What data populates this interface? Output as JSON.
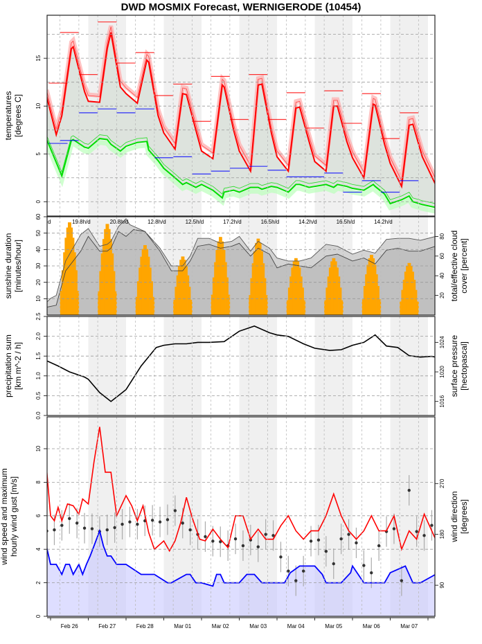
{
  "title": "DWD MOSMIX Forecast, WERNIGERODE (10454)",
  "chart_data": [
    {
      "type": "line",
      "panel": "temperatures",
      "ylabel": "temperatures [degrees C]",
      "ylim": [
        -1.5,
        19.5
      ],
      "yticks": [
        0,
        5,
        10,
        15
      ],
      "grid": true,
      "x_days": [
        "Feb 26",
        "Feb 27",
        "Feb 28",
        "Mar 01",
        "Mar 02",
        "Mar 03",
        "Mar 04",
        "Mar 05",
        "Mar 06",
        "Mar 07"
      ],
      "series": [
        {
          "name": "temperature",
          "color": "#ff0000",
          "x": [
            -0.1,
            0.15,
            0.3,
            0.55,
            0.6,
            0.9,
            1.0,
            1.3,
            1.5,
            1.6,
            1.85,
            2.0,
            2.3,
            2.55,
            2.6,
            2.85,
            3.0,
            3.3,
            3.5,
            3.6,
            3.85,
            4.0,
            4.3,
            4.55,
            4.6,
            4.85,
            5.0,
            5.3,
            5.5,
            5.6,
            5.85,
            6.0,
            6.3,
            6.5,
            6.6,
            6.85,
            7.0,
            7.3,
            7.5,
            7.6,
            7.85,
            8.0,
            8.3,
            8.55,
            8.6,
            8.85,
            9.0,
            9.3,
            9.5,
            9.6,
            9.85,
            10.2
          ],
          "values": [
            11,
            7.0,
            9,
            16.0,
            16.2,
            11.5,
            10.5,
            10.4,
            16,
            17.7,
            12,
            11.3,
            10.3,
            14.8,
            14.6,
            9,
            7.2,
            5.5,
            11.3,
            11.2,
            7.5,
            5.3,
            4.5,
            12.2,
            12.0,
            7.5,
            5.3,
            3.2,
            12.2,
            12.3,
            7.2,
            4.7,
            3.2,
            9.8,
            9.9,
            6.3,
            4.2,
            3.2,
            10.0,
            10.0,
            6.3,
            4.6,
            2.5,
            10.2,
            10.1,
            6.0,
            4.0,
            1.6,
            8.0,
            8.1,
            4.7,
            1.8
          ]
        },
        {
          "name": "dewpoint",
          "color": "#00dd00",
          "x": [
            -0.1,
            0.3,
            0.55,
            0.6,
            0.9,
            1.0,
            1.3,
            1.5,
            1.6,
            1.85,
            2.0,
            2.3,
            2.55,
            2.6,
            2.85,
            3.0,
            3.3,
            3.5,
            3.6,
            3.85,
            4.0,
            4.3,
            4.55,
            4.6,
            4.85,
            5.0,
            5.3,
            5.5,
            5.6,
            5.85,
            6.0,
            6.3,
            6.5,
            6.6,
            6.85,
            7.0,
            7.3,
            7.5,
            7.6,
            7.85,
            8.0,
            8.3,
            8.55,
            8.6,
            8.85,
            9.0,
            9.3,
            9.5,
            9.6,
            9.85,
            10.2
          ],
          "values": [
            6.5,
            2.7,
            6.4,
            6.5,
            5.7,
            5.6,
            6.6,
            6.5,
            6.0,
            5.3,
            5.8,
            6.2,
            6.3,
            5.4,
            4.3,
            3.5,
            2.5,
            1.8,
            2.0,
            1.5,
            1.8,
            1.2,
            0.4,
            1.0,
            1.2,
            1.0,
            1.5,
            1.5,
            1.3,
            1.6,
            1.5,
            1.0,
            1.8,
            1.8,
            1.5,
            1.6,
            1.8,
            1.5,
            1.8,
            1.6,
            1.4,
            1.2,
            1.8,
            1.6,
            0.8,
            -0.2,
            0.2,
            0.6,
            0.0,
            -0.3,
            -0.6
          ]
        },
        {
          "name": "daily_max",
          "color": "#ff0000",
          "type": "segments",
          "x0": [
            -0.05,
            0.25,
            0.75,
            1.25,
            1.75,
            2.25,
            2.75,
            3.25,
            3.75,
            4.25,
            4.75,
            5.25,
            5.75,
            6.25,
            6.75,
            7.25,
            7.75,
            8.25,
            8.75,
            9.25
          ],
          "values": [
            12.4,
            17.7,
            13.3,
            18.8,
            14.5,
            15.6,
            11.1,
            12.3,
            8.4,
            13.1,
            8.6,
            13.3,
            8.6,
            11.4,
            7.7,
            11.6,
            8.2,
            11.3,
            6.6,
            9.3
          ]
        },
        {
          "name": "daily_min",
          "color": "#0000ff",
          "type": "segments",
          "x0": [
            -0.05,
            0.25,
            0.75,
            1.25,
            1.75,
            2.25,
            2.75,
            3.25,
            3.75,
            4.25,
            4.75,
            5.25,
            5.75,
            6.25,
            6.75,
            7.25,
            7.75,
            8.25,
            8.75,
            9.25
          ],
          "values": [
            6.1,
            6.4,
            9.3,
            9.7,
            9.3,
            9.7,
            4.6,
            4.7,
            2.9,
            3.2,
            3.5,
            3.7,
            3.3,
            2.6,
            2.6,
            3.0,
            1.0,
            2.2,
            1.0,
            2.2
          ]
        }
      ]
    },
    {
      "type": "bar",
      "panel": "sunshine",
      "ylabel": "sunshine duration [minutes/hour]",
      "ylabel_right": "total/effective cloud cover [percent]",
      "ylim": [
        0,
        60
      ],
      "yticks": [
        10,
        20,
        30,
        40,
        50,
        60
      ],
      "yticks_right": [
        20,
        40,
        60,
        80
      ],
      "daily_sunshine_labels": [
        "19.8h/d",
        "20.8h/d",
        "12.8h/d",
        "12.5h/d",
        "17.2h/d",
        "16.5h/d",
        "14.2h/d",
        "16.5h/d",
        "14.2h/d"
      ],
      "daily_peak_minutes": [
        57,
        56,
        43,
        36,
        48,
        47,
        35,
        35,
        37,
        32
      ],
      "bar_color": "#ffa500",
      "cloud_total": {
        "x": [
          -0.1,
          0.0,
          0.15,
          0.4,
          0.8,
          1.0,
          1.3,
          1.5,
          1.6,
          1.8,
          2.0,
          2.1,
          2.5,
          2.9,
          3.2,
          3.5,
          3.7,
          3.9,
          4.2,
          4.5,
          4.8,
          5.0,
          5.3,
          5.5,
          5.8,
          6.0,
          6.3,
          6.6,
          6.9,
          7.3,
          7.6,
          8.0,
          8.3,
          8.6,
          8.9,
          9.2,
          9.5,
          9.8,
          10.2
        ],
        "values": [
          13,
          17,
          20,
          55,
          82,
          88,
          70,
          72,
          75,
          90,
          98,
          92,
          85,
          68,
          50,
          50,
          60,
          78,
          78,
          73,
          75,
          80,
          65,
          75,
          68,
          58,
          55,
          55,
          58,
          72,
          70,
          62,
          66,
          63,
          77,
          78,
          78,
          76,
          80
        ]
      },
      "cloud_effective": {
        "x": [
          -0.1,
          0.15,
          0.4,
          0.8,
          1.0,
          1.3,
          1.5,
          1.6,
          1.8,
          2.0,
          2.2,
          2.5,
          2.9,
          3.2,
          3.5,
          3.7,
          3.9,
          4.2,
          4.5,
          4.8,
          5.0,
          5.3,
          5.5,
          5.8,
          6.0,
          6.3,
          6.6,
          6.9,
          7.3,
          7.6,
          8.0,
          8.3,
          8.6,
          8.9,
          9.2,
          9.5,
          9.8,
          10.2
        ],
        "values": [
          8,
          10,
          45,
          65,
          80,
          65,
          65,
          68,
          85,
          80,
          87,
          85,
          65,
          45,
          45,
          55,
          70,
          72,
          68,
          70,
          73,
          60,
          68,
          62,
          48,
          52,
          50,
          48,
          60,
          62,
          55,
          58,
          52,
          66,
          68,
          65,
          65,
          70
        ]
      }
    },
    {
      "type": "line",
      "panel": "pressure",
      "ylabel": "precipitation sum [km m^-2 / h]",
      "ylabel_right": "surface pressure [hectopascal]",
      "ylim": [
        0,
        2.5
      ],
      "yticks": [
        0.0,
        0.5,
        1.0,
        1.5,
        2.0,
        2.5
      ],
      "yticks_right": [
        1016,
        1020,
        1024
      ],
      "ylim_right": [
        1014.1,
        1027.5
      ],
      "precipitation": [],
      "pressure": {
        "x": [
          -0.1,
          0.2,
          0.5,
          0.9,
          1.0,
          1.3,
          1.6,
          1.8,
          2.0,
          2.4,
          2.8,
          3.0,
          3.3,
          3.6,
          3.9,
          4.2,
          4.6,
          5.0,
          5.4,
          5.8,
          6.0,
          6.3,
          6.7,
          7.0,
          7.4,
          7.7,
          8.0,
          8.3,
          8.6,
          8.9,
          9.2,
          9.5,
          9.8,
          10.1,
          10.2
        ],
        "values": [
          1021.5,
          1020.8,
          1020.0,
          1019.3,
          1019.0,
          1017.2,
          1016.0,
          1016.8,
          1017.6,
          1020.8,
          1023.3,
          1023.6,
          1023.8,
          1023.8,
          1024.0,
          1024.0,
          1024.1,
          1025.5,
          1026.2,
          1025.3,
          1025.0,
          1024.8,
          1023.8,
          1023.2,
          1022.9,
          1023.0,
          1023.6,
          1024.0,
          1025.0,
          1023.5,
          1023.3,
          1022.2,
          1022.0,
          1022.1,
          1022.0
        ]
      }
    },
    {
      "type": "line",
      "panel": "wind",
      "ylabel": "wind speed and maximum hourly wind gust [m/s]",
      "ylabel_right": "wind direction [degrees]",
      "ylim": [
        0,
        11.9
      ],
      "yticks": [
        0,
        2,
        4,
        6,
        8,
        10
      ],
      "yticks_right": [
        90,
        180,
        270
      ],
      "ylim_right": [
        35,
        388
      ],
      "wind_speed": {
        "color": "#0000ff",
        "x": [
          -0.1,
          0.0,
          0.15,
          0.3,
          0.4,
          0.5,
          0.6,
          0.75,
          0.85,
          0.95,
          1.05,
          1.15,
          1.3,
          1.4,
          1.5,
          1.6,
          1.75,
          2.0,
          2.4,
          2.75,
          3.1,
          3.2,
          3.6,
          3.7,
          3.85,
          4.0,
          4.3,
          4.4,
          4.5,
          4.6,
          4.8,
          5.0,
          5.2,
          5.4,
          5.6,
          5.8,
          6.2,
          6.35,
          6.6,
          7.0,
          7.2,
          7.3,
          7.35,
          7.5,
          7.7,
          7.95,
          8.0,
          8.3,
          8.5,
          8.6,
          8.85,
          9.0,
          9.4,
          9.6,
          9.8,
          10.2
        ],
        "values": [
          4.1,
          3.1,
          3.1,
          2.5,
          3.1,
          3.1,
          2.5,
          3.1,
          2.5,
          3.1,
          3.6,
          4.2,
          5.1,
          4.2,
          3.6,
          3.6,
          3.1,
          3.1,
          2.5,
          2.5,
          2.0,
          2.0,
          2.5,
          2.5,
          2.0,
          2.0,
          1.8,
          2.5,
          2.5,
          2.0,
          2.0,
          2.0,
          2.5,
          2.5,
          2.0,
          2.0,
          2.0,
          2.6,
          3.0,
          3.0,
          2.5,
          2.0,
          2.0,
          2.0,
          2.0,
          2.6,
          3.0,
          2.0,
          2.0,
          2.0,
          2.0,
          2.6,
          3.0,
          2.0,
          2.0,
          2.5
        ]
      },
      "wind_gust": {
        "color": "#ff0000",
        "x": [
          -0.1,
          0.0,
          0.1,
          0.2,
          0.3,
          0.45,
          0.6,
          0.75,
          0.85,
          1.0,
          1.15,
          1.3,
          1.45,
          1.6,
          1.75,
          2.0,
          2.15,
          2.3,
          2.45,
          2.6,
          2.75,
          3.0,
          3.15,
          3.3,
          3.45,
          3.6,
          3.75,
          3.95,
          4.1,
          4.3,
          4.5,
          4.7,
          4.9,
          5.1,
          5.3,
          5.5,
          5.7,
          5.9,
          6.1,
          6.3,
          6.5,
          6.7,
          6.9,
          7.1,
          7.3,
          7.5,
          7.7,
          7.9,
          8.1,
          8.3,
          8.5,
          8.7,
          8.9,
          9.1,
          9.3,
          9.5,
          9.7,
          9.9,
          10.2
        ],
        "values": [
          8.7,
          6.0,
          5.7,
          6.5,
          5.7,
          6.7,
          6.6,
          6.1,
          7.0,
          6.7,
          9.2,
          11.3,
          8.6,
          8.6,
          6.0,
          7.2,
          6.6,
          5.7,
          6.6,
          5.0,
          4.0,
          4.5,
          3.9,
          4.5,
          5.6,
          7.1,
          5.9,
          4.6,
          4.5,
          5.2,
          4.6,
          4.1,
          6.0,
          6.0,
          4.6,
          5.2,
          4.6,
          4.6,
          5.4,
          6.0,
          5.1,
          4.6,
          5.1,
          5.1,
          6.0,
          7.3,
          6.0,
          5.1,
          4.6,
          5.1,
          6.0,
          5.1,
          5.1,
          6.0,
          4.0,
          5.1,
          4.6,
          6.1,
          4.6
        ]
      },
      "wind_direction_deg": {
        "x": [
          -0.1,
          0.1,
          0.3,
          0.5,
          0.7,
          0.9,
          1.1,
          1.3,
          1.5,
          1.7,
          1.9,
          2.1,
          2.3,
          2.5,
          2.7,
          2.9,
          3.1,
          3.3,
          3.5,
          3.7,
          3.9,
          4.1,
          4.3,
          4.5,
          4.7,
          4.9,
          5.1,
          5.3,
          5.5,
          5.7,
          5.9,
          6.1,
          6.3,
          6.5,
          6.7,
          6.9,
          7.1,
          7.3,
          7.5,
          7.7,
          7.9,
          8.1,
          8.3,
          8.5,
          8.7,
          8.9,
          9.1,
          9.3,
          9.5,
          9.7,
          9.9,
          10.1
        ],
        "values": [
          186,
          188,
          196,
          208,
          200,
          191,
          190,
          185,
          188,
          192,
          198,
          202,
          198,
          204,
          205,
          202,
          206,
          222,
          200,
          188,
          180,
          176,
          168,
          167,
          160,
          172,
          160,
          170,
          158,
          180,
          178,
          140,
          115,
          98,
          115,
          168,
          170,
          150,
          128,
          172,
          180,
          165,
          125,
          112,
          160,
          185,
          190,
          98,
          258,
          185,
          178,
          196
        ]
      }
    }
  ]
}
